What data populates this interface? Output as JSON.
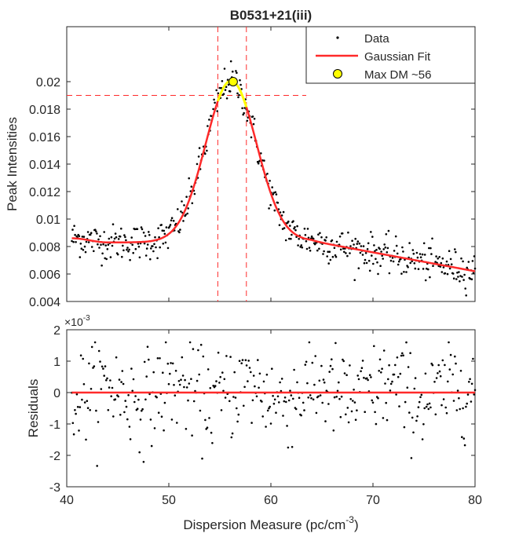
{
  "chart_data": [
    {
      "type": "scatter",
      "title": "B0531+21(iii)",
      "xlabel": "",
      "ylabel": "Peak Intensities",
      "xlim": [
        40,
        80
      ],
      "ylim": [
        0.004,
        0.024
      ],
      "y_tick_labels": [
        "0.004",
        "0.006",
        "0.008",
        "0.01",
        "0.012",
        "0.014",
        "0.016",
        "0.018",
        "0.02"
      ],
      "y_ticks": [
        0.004,
        0.006,
        0.008,
        0.01,
        0.012,
        0.014,
        0.016,
        0.018,
        0.02
      ],
      "legend": {
        "position": "top-right",
        "entries": [
          {
            "label": "Data",
            "marker": "dot",
            "color": "#000000"
          },
          {
            "label": "Gaussian Fit",
            "marker": "line",
            "color": "#ff2a2a"
          },
          {
            "label": "Max DM ~56",
            "marker": "circle",
            "color": "#ffff00"
          }
        ]
      },
      "series": [
        {
          "name": "Data",
          "type": "scatter",
          "x_range": [
            40.5,
            80
          ],
          "n_points": 500,
          "color": "#000000"
        },
        {
          "name": "Gaussian Fit",
          "type": "line",
          "color": "#ff2a2a",
          "model": {
            "amplitude": 0.0117,
            "center": 56.1,
            "sigma": 2.5,
            "baseline_points": [
              [
                40.5,
                0.0086
              ],
              [
                44,
                0.0083
              ],
              [
                64,
                0.0084
              ],
              [
                80,
                0.0062
              ]
            ]
          }
        },
        {
          "name": "Max Region Fit",
          "type": "line",
          "color": "#ffff00",
          "x_range": [
            54.8,
            57.6
          ]
        },
        {
          "name": "Max DM ~56",
          "type": "marker",
          "x": 56.3,
          "y": 0.02,
          "color": "#ffff00"
        }
      ],
      "reference_lines": {
        "horizontal": [
          {
            "y": 0.019,
            "color": "#ff2a2a",
            "style": "dashed"
          }
        ],
        "vertical": [
          {
            "x": 54.8,
            "color": "#ff2a2a",
            "style": "dashed"
          },
          {
            "x": 57.6,
            "color": "#ff2a2a",
            "style": "dashed"
          }
        ]
      }
    },
    {
      "type": "scatter",
      "title": "",
      "xlabel": "Dispersion Measure (pc/cm",
      "xlabel_superscript": "-3",
      "xlabel_suffix": ")",
      "ylabel": "Residuals",
      "exponent_label": "×10",
      "exponent_power": "-3",
      "xlim": [
        40,
        80
      ],
      "ylim": [
        -3,
        2
      ],
      "x_ticks": [
        40,
        50,
        60,
        70,
        80
      ],
      "x_tick_labels": [
        "40",
        "50",
        "60",
        "70",
        "80"
      ],
      "y_ticks": [
        -3,
        -2,
        -1,
        0,
        1,
        2
      ],
      "y_tick_labels": [
        "-3",
        "-2",
        "-1",
        "0",
        "1",
        "2"
      ],
      "series": [
        {
          "name": "Residuals",
          "type": "scatter",
          "x_range": [
            40.5,
            80
          ],
          "n_points": 400,
          "color": "#000000"
        },
        {
          "name": "Zero Line",
          "type": "line",
          "x": [
            40.5,
            80
          ],
          "y": [
            0,
            0
          ],
          "color": "#ff2a2a"
        }
      ]
    }
  ]
}
